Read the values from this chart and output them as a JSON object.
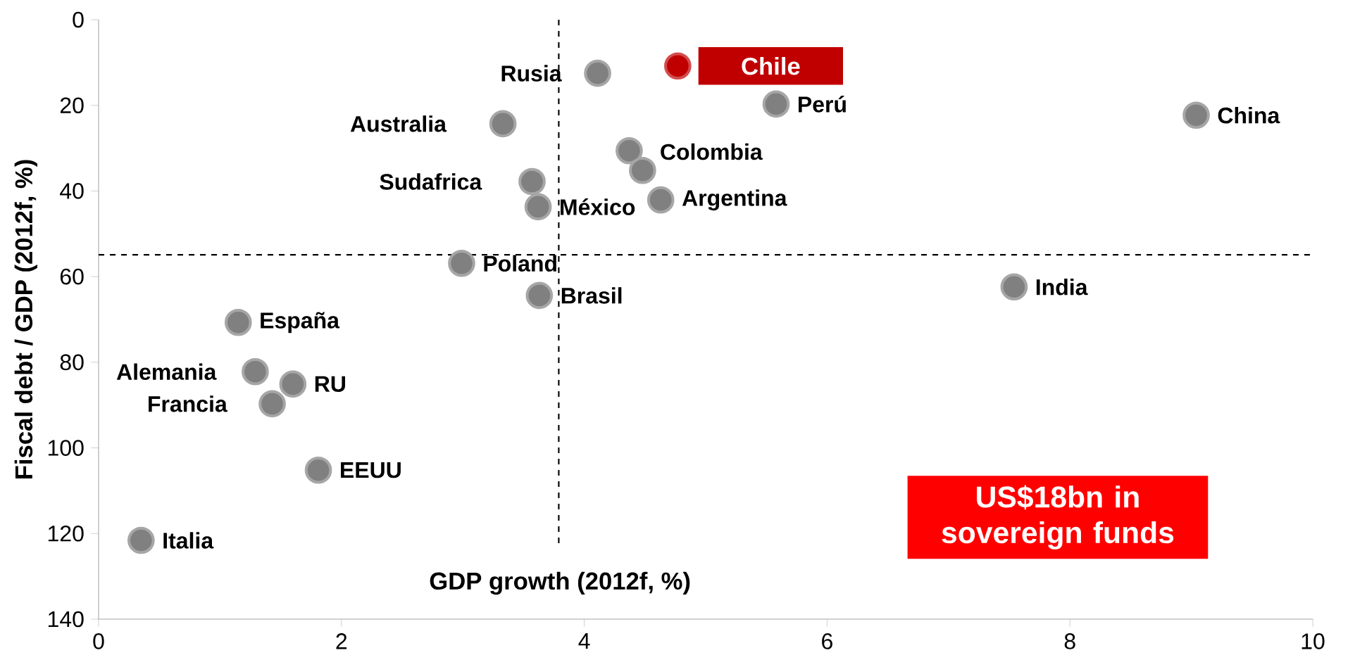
{
  "chart_data": {
    "type": "scatter",
    "xlabel": "GDP growth (2012f, %)",
    "ylabel": "Fiscal debt / GDP (2012f, %)",
    "x": [
      0.35,
      1.81,
      1.43,
      1.6,
      1.29,
      1.15,
      2.99,
      3.63,
      3.62,
      3.57,
      3.33,
      4.11,
      4.77,
      5.58,
      4.37,
      4.48,
      4.63,
      7.54,
      9.04
    ],
    "values": [
      121.6,
      105.2,
      89.7,
      85.1,
      82.2,
      70.7,
      56.9,
      64.4,
      43.7,
      37.8,
      24.3,
      12.5,
      10.8,
      19.7,
      30.6,
      35.2,
      42.1,
      62.4,
      22.3
    ],
    "colors": [
      "#808080",
      "#808080",
      "#808080",
      "#808080",
      "#808080",
      "#808080",
      "#808080",
      "#808080",
      "#808080",
      "#808080",
      "#808080",
      "#808080",
      "#c00000",
      "#808080",
      "#808080",
      "#808080",
      "#808080",
      "#808080",
      "#808080"
    ],
    "xlim": [
      0,
      10
    ],
    "ylim": [
      140,
      0
    ],
    "xticks": [
      0,
      2,
      4,
      6,
      8,
      10
    ],
    "yticks": [
      0,
      20,
      40,
      60,
      80,
      100,
      120,
      140
    ],
    "grid": false,
    "ref_lines": [
      {
        "axis": "x",
        "value": 3.79,
        "line_style": "dashed"
      },
      {
        "axis": "y",
        "value": 54.9,
        "line_style": "dashed"
      }
    ],
    "annotations": [
      {
        "text": "Italia",
        "x": 0.35,
        "y": 121.6
      },
      {
        "text": "EEUU",
        "x": 1.81,
        "y": 105.2
      },
      {
        "text": "Francia",
        "x": 1.43,
        "y": 89.7
      },
      {
        "text": "RU",
        "x": 1.6,
        "y": 85.1
      },
      {
        "text": "Alemania",
        "x": 1.29,
        "y": 82.2
      },
      {
        "text": "España",
        "x": 1.15,
        "y": 70.7
      },
      {
        "text": "Poland",
        "x": 2.99,
        "y": 56.9
      },
      {
        "text": "Brasil",
        "x": 3.63,
        "y": 64.4
      },
      {
        "text": "México",
        "x": 3.62,
        "y": 43.7
      },
      {
        "text": "Sudafrica",
        "x": 3.57,
        "y": 37.8
      },
      {
        "text": "Australia",
        "x": 3.33,
        "y": 24.3
      },
      {
        "text": "Rusia",
        "x": 4.11,
        "y": 12.5
      },
      {
        "text": "Chile",
        "x": 4.77,
        "y": 10.8
      },
      {
        "text": "Perú",
        "x": 5.58,
        "y": 19.7
      },
      {
        "text": "Colombia",
        "x": 4.48,
        "y": 35.2
      },
      {
        "text": "Argentina",
        "x": 4.63,
        "y": 42.1
      },
      {
        "text": "India",
        "x": 7.54,
        "y": 62.4
      },
      {
        "text": "China",
        "x": 9.04,
        "y": 22.3
      },
      "US$18bn in sovereign funds"
    ]
  }
}
